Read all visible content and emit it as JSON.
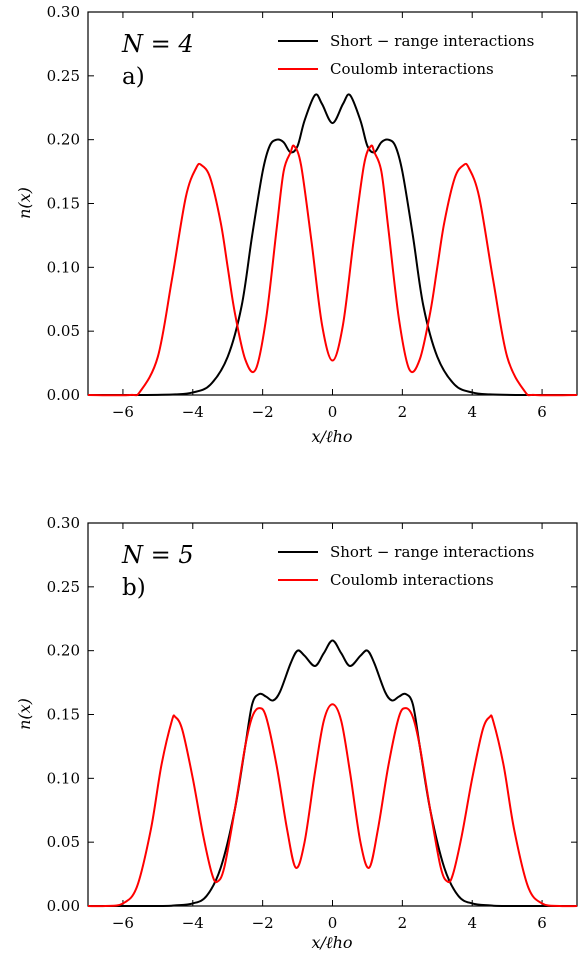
{
  "chart_data": [
    {
      "type": "line",
      "panel_label": "a)",
      "annotation": "N = 4",
      "xlabel": "x/ℓho",
      "ylabel": "n(x)",
      "xlim": [
        -7,
        7
      ],
      "ylim": [
        0,
        0.3
      ],
      "xticks": [
        -6,
        -4,
        -2,
        0,
        2,
        4,
        6
      ],
      "xtick_labels": [
        "−6",
        "−4",
        "−2",
        "0",
        "2",
        "4",
        "6"
      ],
      "yticks": [
        0,
        0.05,
        0.1,
        0.15,
        0.2,
        0.25,
        0.3
      ],
      "ytick_labels": [
        "0.00",
        "0.05",
        "0.10",
        "0.15",
        "0.20",
        "0.25",
        "0.30"
      ],
      "legend_position": "top-right",
      "grid": false,
      "series": [
        {
          "name": "Short − range interactions",
          "color": "#000000",
          "x": [
            -7,
            -5.5,
            -4.5,
            -4.0,
            -3.5,
            -3.0,
            -2.6,
            -2.3,
            -2.0,
            -1.8,
            -1.6,
            -1.4,
            -1.2,
            -1.0,
            -0.8,
            -0.5,
            -0.3,
            0,
            0.3,
            0.5,
            0.8,
            1.0,
            1.2,
            1.4,
            1.6,
            1.8,
            2.0,
            2.3,
            2.6,
            3.0,
            3.5,
            4.0,
            4.5,
            5.5,
            7
          ],
          "y": [
            0.0,
            0.0,
            0.0005,
            0.002,
            0.008,
            0.03,
            0.07,
            0.125,
            0.175,
            0.195,
            0.2,
            0.198,
            0.19,
            0.195,
            0.215,
            0.235,
            0.228,
            0.213,
            0.228,
            0.235,
            0.215,
            0.195,
            0.19,
            0.198,
            0.2,
            0.195,
            0.175,
            0.125,
            0.07,
            0.03,
            0.008,
            0.002,
            0.0005,
            0.0,
            0.0
          ]
        },
        {
          "name": "Coulomb interactions",
          "color": "#ff0000",
          "x": [
            -7,
            -5.8,
            -5.5,
            -5.0,
            -4.6,
            -4.2,
            -3.9,
            -3.75,
            -3.5,
            -3.2,
            -3.0,
            -2.8,
            -2.5,
            -2.2,
            -1.9,
            -1.6,
            -1.4,
            -1.2,
            -1.1,
            -0.9,
            -0.6,
            -0.3,
            0,
            0.3,
            0.6,
            0.9,
            1.1,
            1.2,
            1.4,
            1.6,
            1.9,
            2.2,
            2.5,
            2.8,
            3.0,
            3.2,
            3.5,
            3.75,
            3.9,
            4.2,
            4.6,
            5.0,
            5.5,
            5.8,
            7
          ],
          "y": [
            0.0,
            0.0,
            0.003,
            0.03,
            0.09,
            0.155,
            0.178,
            0.18,
            0.17,
            0.135,
            0.1,
            0.065,
            0.028,
            0.02,
            0.06,
            0.13,
            0.175,
            0.19,
            0.195,
            0.18,
            0.12,
            0.055,
            0.027,
            0.055,
            0.12,
            0.18,
            0.195,
            0.19,
            0.175,
            0.13,
            0.06,
            0.02,
            0.028,
            0.065,
            0.1,
            0.135,
            0.17,
            0.18,
            0.178,
            0.155,
            0.09,
            0.03,
            0.003,
            0.0,
            0.0
          ]
        }
      ]
    },
    {
      "type": "line",
      "panel_label": "b)",
      "annotation": "N = 5",
      "xlabel": "x/ℓho",
      "ylabel": "n(x)",
      "xlim": [
        -7,
        7
      ],
      "ylim": [
        0,
        0.3
      ],
      "xticks": [
        -6,
        -4,
        -2,
        0,
        2,
        4,
        6
      ],
      "xtick_labels": [
        "−6",
        "−4",
        "−2",
        "0",
        "2",
        "4",
        "6"
      ],
      "yticks": [
        0,
        0.05,
        0.1,
        0.15,
        0.2,
        0.25,
        0.3
      ],
      "ytick_labels": [
        "0.00",
        "0.05",
        "0.10",
        "0.15",
        "0.20",
        "0.25",
        "0.30"
      ],
      "legend_position": "top-right",
      "grid": false,
      "series": [
        {
          "name": "Short − range interactions",
          "color": "#000000",
          "x": [
            -7,
            -5.0,
            -4.5,
            -4.0,
            -3.6,
            -3.2,
            -2.8,
            -2.5,
            -2.3,
            -2.1,
            -1.9,
            -1.7,
            -1.5,
            -1.2,
            -1.0,
            -0.8,
            -0.5,
            -0.25,
            0,
            0.25,
            0.5,
            0.8,
            1.0,
            1.2,
            1.5,
            1.7,
            1.9,
            2.1,
            2.3,
            2.5,
            2.8,
            3.2,
            3.6,
            4.0,
            4.5,
            5.0,
            7
          ],
          "y": [
            0.0,
            0.0,
            0.0005,
            0.002,
            0.008,
            0.03,
            0.075,
            0.125,
            0.158,
            0.166,
            0.164,
            0.161,
            0.168,
            0.19,
            0.2,
            0.196,
            0.188,
            0.198,
            0.208,
            0.198,
            0.188,
            0.196,
            0.2,
            0.19,
            0.168,
            0.161,
            0.164,
            0.166,
            0.158,
            0.125,
            0.075,
            0.03,
            0.008,
            0.002,
            0.0005,
            0.0,
            0.0
          ]
        },
        {
          "name": "Coulomb interactions",
          "color": "#ff0000",
          "x": [
            -7,
            -6.5,
            -6.0,
            -5.6,
            -5.2,
            -4.9,
            -4.6,
            -4.5,
            -4.3,
            -4.0,
            -3.7,
            -3.45,
            -3.3,
            -3.1,
            -2.8,
            -2.5,
            -2.3,
            -2.1,
            -1.9,
            -1.6,
            -1.3,
            -1.05,
            -0.8,
            -0.5,
            -0.25,
            0,
            0.25,
            0.5,
            0.8,
            1.05,
            1.3,
            1.6,
            1.9,
            2.1,
            2.3,
            2.5,
            2.8,
            3.1,
            3.3,
            3.45,
            3.7,
            4.0,
            4.3,
            4.5,
            4.6,
            4.9,
            5.2,
            5.6,
            6.0,
            6.5,
            7
          ],
          "y": [
            0.0,
            0.0,
            0.002,
            0.015,
            0.06,
            0.11,
            0.145,
            0.148,
            0.138,
            0.1,
            0.055,
            0.025,
            0.019,
            0.03,
            0.075,
            0.125,
            0.148,
            0.155,
            0.148,
            0.11,
            0.06,
            0.03,
            0.05,
            0.105,
            0.145,
            0.158,
            0.145,
            0.105,
            0.05,
            0.03,
            0.06,
            0.11,
            0.148,
            0.155,
            0.148,
            0.125,
            0.075,
            0.03,
            0.019,
            0.025,
            0.055,
            0.1,
            0.138,
            0.148,
            0.145,
            0.11,
            0.06,
            0.015,
            0.002,
            0.0,
            0.0
          ]
        }
      ]
    }
  ]
}
